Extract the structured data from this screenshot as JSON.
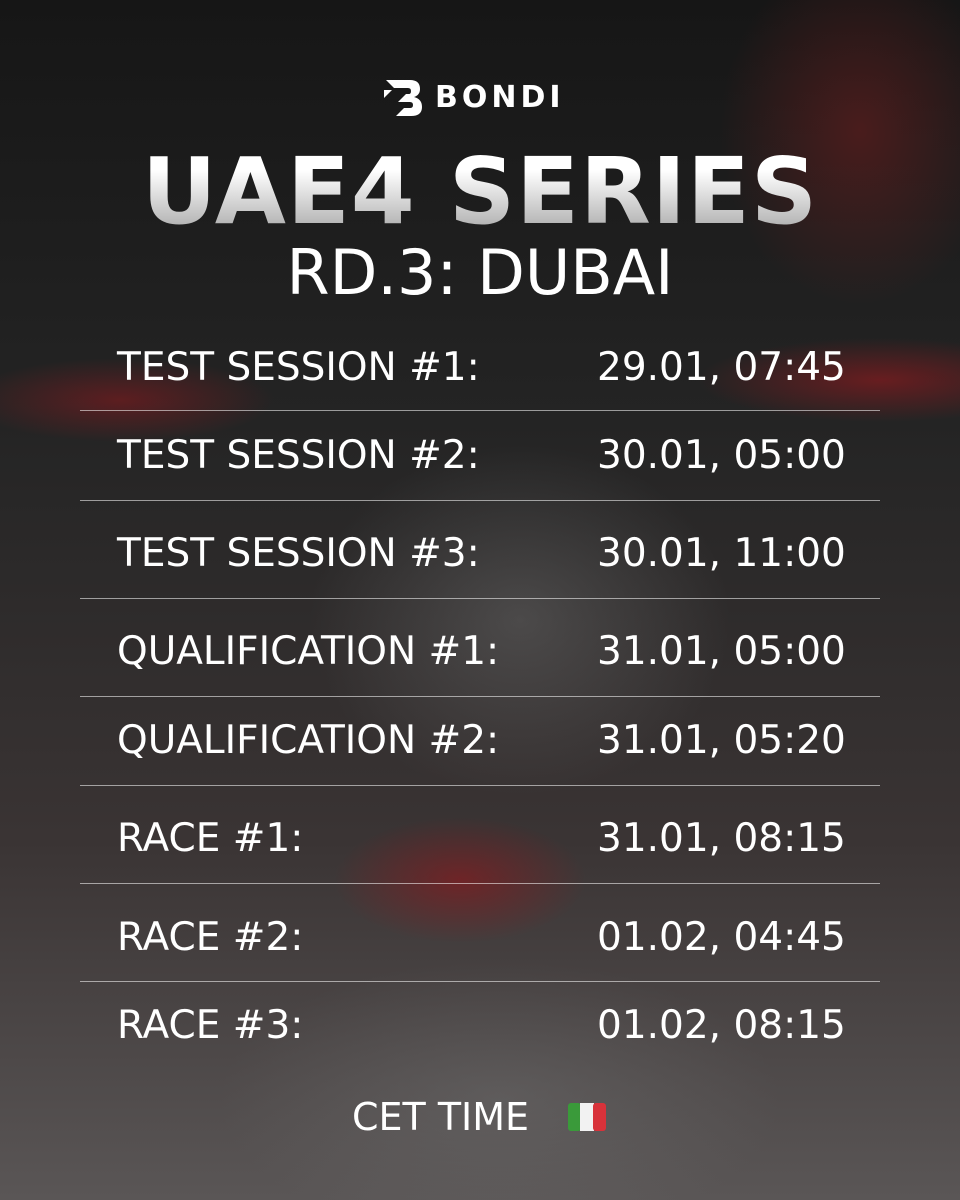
{
  "header": {
    "brand": "BONDI",
    "title": "UAE4 SERIES",
    "subtitle": "RD.3: DUBAI"
  },
  "schedule": {
    "rows": [
      [
        "TEST SESSION #1:",
        "29.01, 07:45"
      ],
      [
        "TEST SESSION #2:",
        "30.01, 05:00"
      ],
      [
        "TEST SESSION #3:",
        "30.01, 11:00"
      ],
      [
        "QUALIFICATION #1:",
        "31.01, 05:00"
      ],
      [
        "QUALIFICATION #2:",
        "31.01, 05:20"
      ],
      [
        "RACE #1:",
        "31.01, 08:15"
      ],
      [
        "RACE #2:",
        "01.02, 04:45"
      ],
      [
        "RACE #3:",
        "01.02, 08:15"
      ]
    ]
  },
  "footer": {
    "note": "CET TIME"
  }
}
